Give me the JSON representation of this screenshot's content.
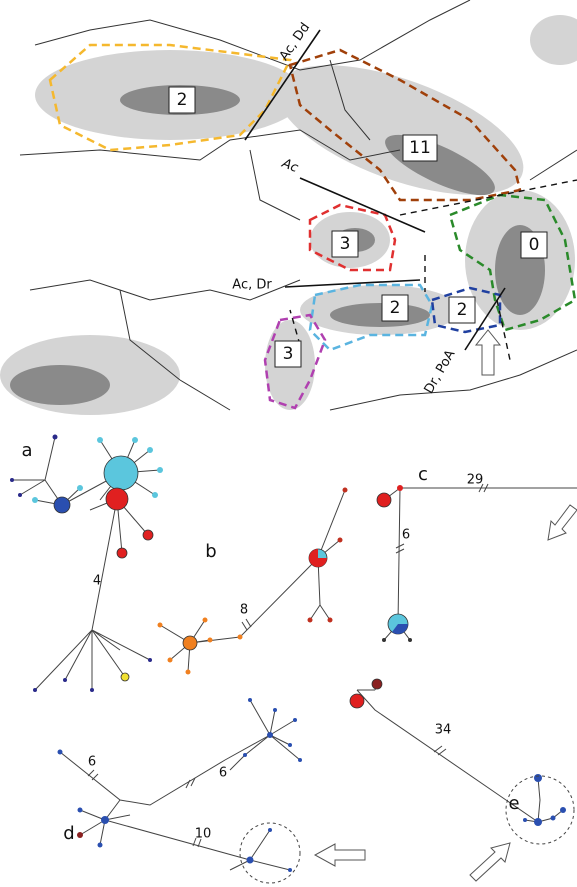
{
  "map": {
    "regions": [
      {
        "label": "2",
        "color": "#f5b82e"
      },
      {
        "label": "11",
        "color": "#a0400a"
      },
      {
        "label": "3",
        "color": "#e03030"
      },
      {
        "label": "0",
        "color": "#2a8a2a"
      },
      {
        "label": "2",
        "color": "#5ab4e0"
      },
      {
        "label": "2",
        "color": "#2040a0"
      },
      {
        "label": "3",
        "color": "#b040b0"
      }
    ],
    "barriers": [
      "Ac, Dd",
      "Ac",
      "Ac, Dr",
      "Dr, PoA"
    ]
  },
  "networks": {
    "panels": [
      "a",
      "b",
      "c",
      "d",
      "e"
    ],
    "branch_lengths": [
      "4",
      "8",
      "29",
      "6",
      "6",
      "6",
      "10",
      "34"
    ]
  }
}
